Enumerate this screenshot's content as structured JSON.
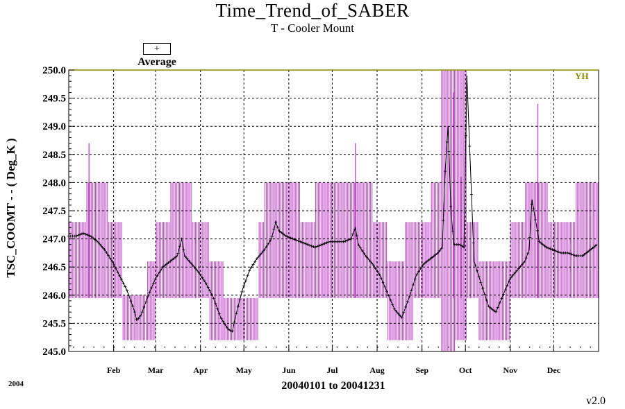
{
  "header": {
    "title": "Time_Trend_of_SABER",
    "subtitle": "T - Cooler Mount"
  },
  "legend": {
    "symbol": "+",
    "label": "Average"
  },
  "corner_tag": "YH",
  "footer": {
    "year": "2004",
    "version": "v2.0"
  },
  "colors": {
    "range_bars": "#c050c8",
    "average_line": "#000000",
    "grid": "#000000",
    "top_line": "#8a8a00",
    "corner_tag": "#8a8a00"
  },
  "chart_data": {
    "type": "line",
    "title": "Time_Trend_of_SABER",
    "subtitle": "T - Cooler Mount",
    "xlabel": "20040101 to 20041231",
    "ylabel": "TSC_COOMT  -  - ( Deg_K )",
    "xlim": [
      0,
      366
    ],
    "ylim": [
      245.0,
      250.0
    ],
    "yticks": [
      245.0,
      245.5,
      246.0,
      246.5,
      247.0,
      247.5,
      248.0,
      248.5,
      249.0,
      249.5,
      250.0
    ],
    "ytick_labels": [
      "245.0",
      "245.5",
      "246.0",
      "246.5",
      "247.0",
      "247.5",
      "248.0",
      "248.5",
      "249.0",
      "249.5",
      "250.0"
    ],
    "xtick_days": [
      31,
      60,
      91,
      121,
      152,
      182,
      213,
      244,
      274,
      305,
      335
    ],
    "xtick_labels": [
      "Feb",
      "Mar",
      "Apr",
      "May",
      "Jun",
      "Jul",
      "Aug",
      "Sep",
      "Oct",
      "Nov",
      "Dec"
    ],
    "grid": true,
    "legend_position": "top-left",
    "series": [
      {
        "name": "Average",
        "x": [
          0,
          5,
          10,
          15,
          20,
          25,
          30,
          35,
          40,
          45,
          47,
          50,
          55,
          60,
          65,
          70,
          75,
          78,
          80,
          85,
          90,
          95,
          100,
          105,
          110,
          113,
          115,
          120,
          125,
          130,
          135,
          140,
          143,
          145,
          150,
          155,
          160,
          165,
          170,
          175,
          180,
          185,
          190,
          195,
          198,
          200,
          205,
          210,
          215,
          220,
          225,
          230,
          235,
          240,
          245,
          250,
          255,
          258,
          260,
          262,
          264,
          266,
          268,
          270,
          273,
          275,
          280,
          285,
          290,
          295,
          300,
          305,
          310,
          315,
          318,
          320,
          325,
          330,
          335,
          340,
          345,
          350,
          355,
          360,
          365
        ],
        "y": [
          247.05,
          247.05,
          247.1,
          247.05,
          246.95,
          246.8,
          246.6,
          246.35,
          246.1,
          245.75,
          245.55,
          245.65,
          246.0,
          246.3,
          246.5,
          246.6,
          246.7,
          247.0,
          246.7,
          246.55,
          246.4,
          246.2,
          245.95,
          245.6,
          245.4,
          245.35,
          245.6,
          246.1,
          246.45,
          246.65,
          246.8,
          247.0,
          247.3,
          247.15,
          247.05,
          247.0,
          246.95,
          246.9,
          246.85,
          246.9,
          246.95,
          246.95,
          246.95,
          247.0,
          247.2,
          246.9,
          246.7,
          246.55,
          246.35,
          246.05,
          245.75,
          245.6,
          245.95,
          246.35,
          246.55,
          246.65,
          246.75,
          246.85,
          248.2,
          249.0,
          247.5,
          246.9,
          246.9,
          246.9,
          246.85,
          249.9,
          246.6,
          246.2,
          245.8,
          245.7,
          246.0,
          246.3,
          246.45,
          246.6,
          246.8,
          247.7,
          246.95,
          246.85,
          246.8,
          246.75,
          246.75,
          246.7,
          246.7,
          246.8,
          246.9
        ]
      },
      {
        "name": "",
        "type": "range",
        "segments": [
          {
            "x_start": 0,
            "x_end": 12,
            "low": 245.95,
            "high": 247.3
          },
          {
            "x_start": 12,
            "x_end": 27,
            "low": 245.95,
            "high": 248.0
          },
          {
            "x_start": 27,
            "x_end": 37,
            "low": 245.95,
            "high": 247.3
          },
          {
            "x_start": 37,
            "x_end": 54,
            "low": 245.2,
            "high": 246.0
          },
          {
            "x_start": 54,
            "x_end": 60,
            "low": 245.2,
            "high": 246.6
          },
          {
            "x_start": 60,
            "x_end": 70,
            "low": 245.95,
            "high": 247.3
          },
          {
            "x_start": 70,
            "x_end": 85,
            "low": 245.95,
            "high": 248.0
          },
          {
            "x_start": 85,
            "x_end": 97,
            "low": 245.95,
            "high": 247.3
          },
          {
            "x_start": 97,
            "x_end": 107,
            "low": 245.2,
            "high": 246.6
          },
          {
            "x_start": 107,
            "x_end": 131,
            "low": 245.2,
            "high": 245.95
          },
          {
            "x_start": 131,
            "x_end": 135,
            "low": 245.95,
            "high": 247.3
          },
          {
            "x_start": 135,
            "x_end": 160,
            "low": 245.95,
            "high": 248.0
          },
          {
            "x_start": 160,
            "x_end": 170,
            "low": 245.95,
            "high": 247.3
          },
          {
            "x_start": 170,
            "x_end": 210,
            "low": 245.95,
            "high": 248.0
          },
          {
            "x_start": 210,
            "x_end": 220,
            "low": 245.95,
            "high": 247.3
          },
          {
            "x_start": 220,
            "x_end": 232,
            "low": 245.2,
            "high": 246.6
          },
          {
            "x_start": 232,
            "x_end": 238,
            "low": 245.2,
            "high": 247.3
          },
          {
            "x_start": 238,
            "x_end": 250,
            "low": 245.95,
            "high": 247.3
          },
          {
            "x_start": 250,
            "x_end": 257,
            "low": 245.95,
            "high": 248.0
          },
          {
            "x_start": 257,
            "x_end": 267,
            "low": 245.0,
            "high": 250.0
          },
          {
            "x_start": 267,
            "x_end": 275,
            "low": 245.2,
            "high": 250.0
          },
          {
            "x_start": 275,
            "x_end": 283,
            "low": 245.95,
            "high": 247.3
          },
          {
            "x_start": 283,
            "x_end": 305,
            "low": 245.2,
            "high": 246.6
          },
          {
            "x_start": 305,
            "x_end": 315,
            "low": 245.95,
            "high": 247.3
          },
          {
            "x_start": 315,
            "x_end": 331,
            "low": 245.95,
            "high": 248.0
          },
          {
            "x_start": 331,
            "x_end": 350,
            "low": 245.95,
            "high": 247.3
          },
          {
            "x_start": 350,
            "x_end": 366,
            "low": 245.95,
            "high": 248.0
          }
        ],
        "spikes": [
          {
            "x": 14,
            "high": 248.7
          },
          {
            "x": 198,
            "high": 248.7
          },
          {
            "x": 266,
            "high": 249.6
          },
          {
            "x": 271,
            "high": 248.1
          },
          {
            "x": 324,
            "high": 249.4
          }
        ]
      }
    ]
  }
}
